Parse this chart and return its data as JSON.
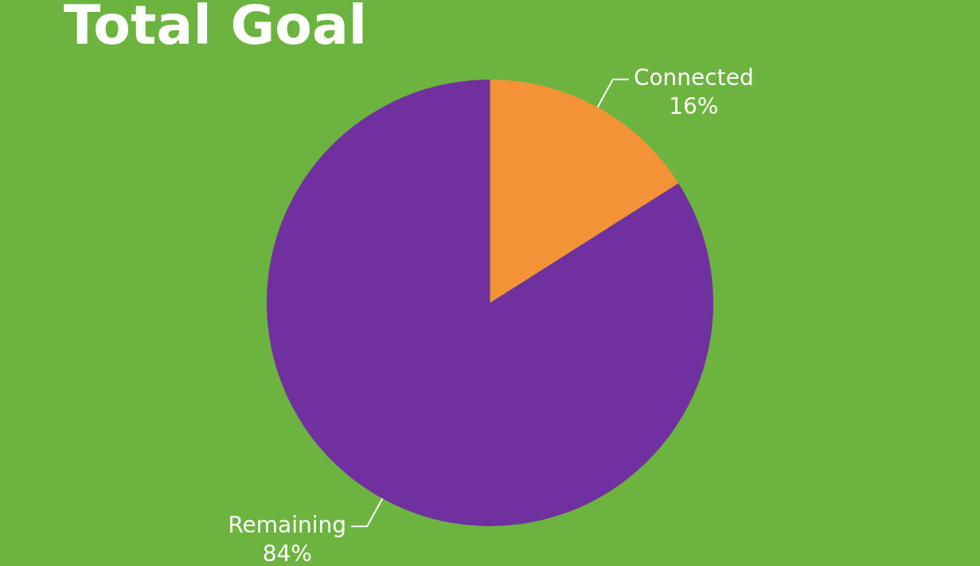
{
  "chart_data": {
    "type": "pie",
    "title": "Total Goal",
    "categories": [
      "Connected",
      "Remaining"
    ],
    "values": [
      16,
      84
    ],
    "colors": [
      "#f39237",
      "#7030a0"
    ],
    "value_labels": [
      "16%",
      "84%"
    ],
    "legend": false
  }
}
